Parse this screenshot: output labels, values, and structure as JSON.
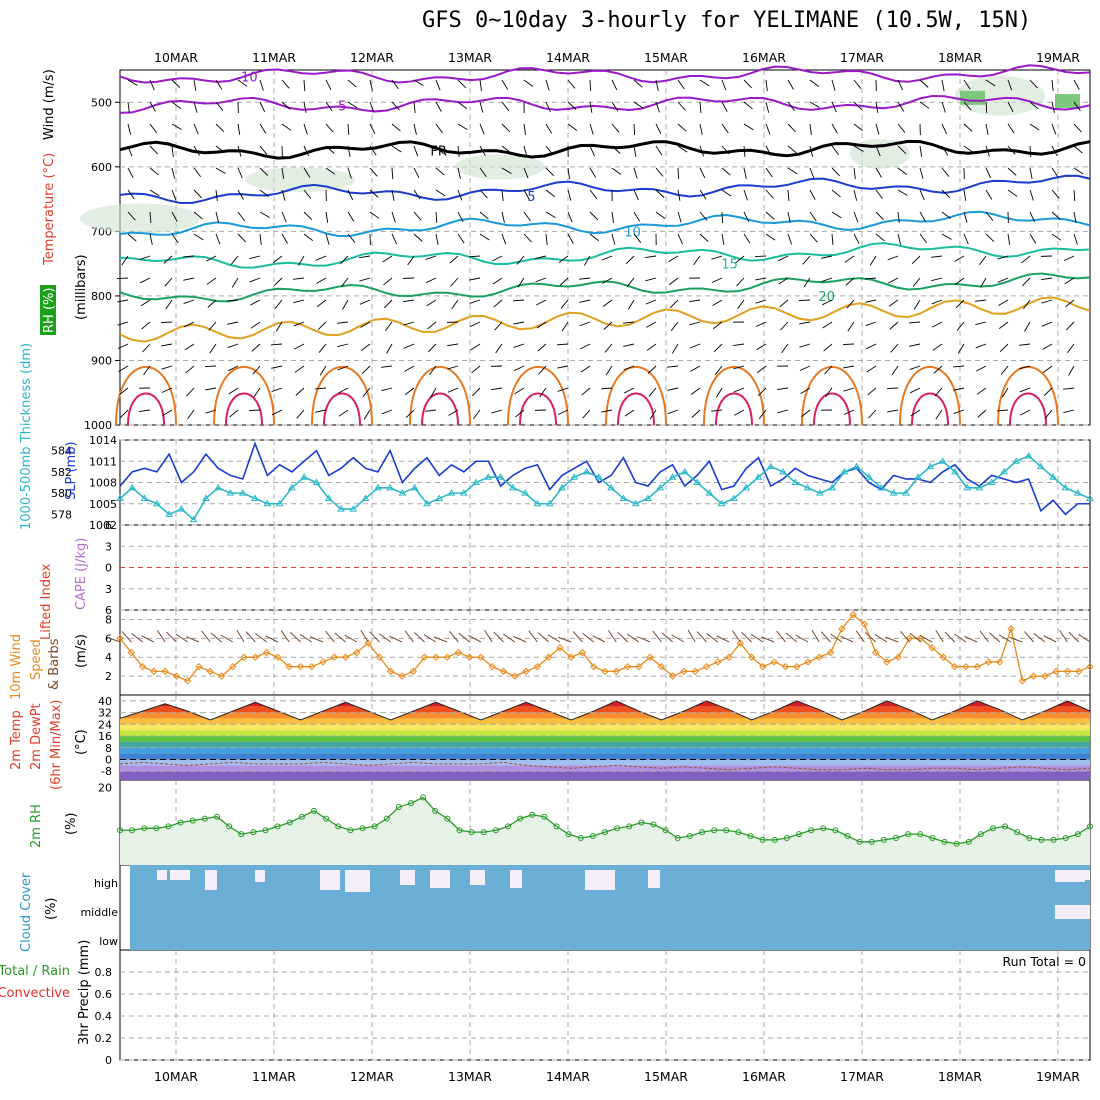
{
  "title": "GFS 0~10day 3-hourly for YELIMANE (10.5W, 15N)",
  "dates": [
    "10MAR",
    "11MAR",
    "12MAR",
    "13MAR",
    "14MAR",
    "15MAR",
    "16MAR",
    "17MAR",
    "18MAR",
    "19MAR"
  ],
  "labels": {
    "wind": "Wind (m/s)",
    "temperature": "Temperature (°C)",
    "rh": "RH (%)",
    "millibars": "(millibars)",
    "thickness": "1000-500mb Thickness (dm)",
    "slp": "SLP (mb)",
    "lifted": "Lifted Index",
    "cape": "CAPE (J/kg)",
    "wind10a": "10m Wind",
    "wind10b": "Speed",
    "wind10c": "& Barbs",
    "wind10unit": "(m/s)",
    "t2a": "2m Temp",
    "t2b": "2m DewPt",
    "t2c": "(6hr Min/Max)",
    "t2unit": "(°C)",
    "rh2": "2m RH",
    "rh2unit": "(%)",
    "cloud": "Cloud Cover",
    "cloudunit": "(%)",
    "cloud_high": "high",
    "cloud_middle": "middle",
    "cloud_low": "low",
    "precip_total": "Total / Rain",
    "precip_conv": "Convective",
    "precip": "3hr Precip (mm)",
    "run_total": "Run Total = 0"
  },
  "colors": {
    "slp_line": "#1a3ccf",
    "thickness_line": "#2ab8c8",
    "wind10_line": "#e88a1a",
    "rh2_line": "#2a9a2a",
    "cloud_fill": "#6baed6",
    "temp_label": "#e0402a",
    "wind_label": "#000000",
    "rh_label": "#2a9a2a",
    "cape_label": "#b070d0",
    "lifted_label": "#e0402a"
  },
  "chart_data": [
    {
      "type": "line",
      "panel": "upper-air",
      "title": "Temperature isotherms (°C)",
      "yaxis": "pressure (mb)",
      "yticks": [
        500,
        600,
        700,
        800,
        900,
        1000
      ],
      "ylim": [
        450,
        1000
      ],
      "isotherm_labels": [
        "-10",
        "-5",
        "FR",
        "5",
        "10",
        "15",
        "20"
      ],
      "series": [
        {
          "name": "-10",
          "x": [
            0,
            80
          ],
          "y": [
            460,
            455
          ]
        },
        {
          "name": "-5",
          "x": [
            0,
            80
          ],
          "y": [
            505,
            500
          ]
        },
        {
          "name": "FR",
          "x": [
            0,
            80
          ],
          "y": [
            575,
            570
          ]
        },
        {
          "name": "5",
          "x": [
            0,
            80
          ],
          "y": [
            645,
            625
          ]
        },
        {
          "name": "10",
          "x": [
            0,
            80
          ],
          "y": [
            700,
            680
          ]
        },
        {
          "name": "15",
          "x": [
            0,
            80
          ],
          "y": [
            750,
            725
          ]
        },
        {
          "name": "20",
          "x": [
            0,
            80
          ],
          "y": [
            800,
            775
          ]
        }
      ]
    },
    {
      "type": "line",
      "panel": "slp-thickness",
      "yticks_left": [
        578,
        580,
        582,
        584
      ],
      "yticks_right": [
        1002,
        1005,
        1008,
        1011,
        1014
      ],
      "series": [
        {
          "name": "SLP (mb)",
          "values": [
            1007.5,
            1009.5,
            1010,
            1009.5,
            1012,
            1008,
            1009.5,
            1012,
            1010,
            1009,
            1008.5,
            1013.5,
            1009,
            1010.5,
            1009.5,
            1011,
            1012.5,
            1009,
            1010,
            1011.5,
            1010,
            1009.5,
            1012.5,
            1008,
            1010,
            1011.5,
            1009,
            1010.5,
            1009.5,
            1011,
            1011,
            1007.5,
            1009,
            1010,
            1010.5,
            1007,
            1009,
            1010,
            1011,
            1008,
            1009,
            1011.5,
            1008,
            1007.5,
            1009.5,
            1010.5,
            1007.5,
            1009,
            1011,
            1007,
            1007.5,
            1010,
            1011.5,
            1007.5,
            1008.5,
            1010,
            1009,
            1008.5,
            1008,
            1009.5,
            1010,
            1008,
            1007,
            1009,
            1008.5,
            1008.5,
            1008,
            1009.5,
            1010.5,
            1008.5,
            1007.5,
            1009,
            1008.5,
            1008,
            1008.5,
            1004,
            1005.5,
            1003.5,
            1005,
            1005
          ]
        },
        {
          "name": "1000-500mb Thickness (dm)",
          "values": [
            579.5,
            580.5,
            579.5,
            579,
            578,
            578.5,
            577.5,
            579.5,
            580.5,
            580,
            580,
            579.5,
            579,
            579,
            580.5,
            581.5,
            581,
            579.5,
            578.5,
            578.5,
            579.5,
            580.5,
            580.5,
            580,
            580.5,
            579,
            579.5,
            580,
            580,
            581,
            581.5,
            581.5,
            580.5,
            580,
            579,
            579,
            580.5,
            581.5,
            582,
            581.5,
            580.5,
            579.5,
            579,
            579.5,
            580.5,
            581.5,
            582,
            581,
            580,
            579,
            579.5,
            580.5,
            581.5,
            582.5,
            582,
            581,
            580.5,
            580,
            580.5,
            582,
            582.5,
            581.5,
            580.5,
            580,
            580,
            581.5,
            582.5,
            583,
            582,
            580.5,
            580.5,
            581,
            582,
            583,
            583.5,
            582.5,
            581.5,
            580.5,
            580,
            579.5
          ]
        }
      ]
    },
    {
      "type": "line",
      "panel": "lifted-cape",
      "yticks": [
        6,
        3,
        0,
        -3,
        -6
      ],
      "ylim": [
        -6,
        6
      ],
      "series": [
        {
          "name": "Lifted Index",
          "values": []
        }
      ]
    },
    {
      "type": "line",
      "panel": "wind10",
      "yticks": [
        2,
        4,
        6,
        8
      ],
      "ylim": [
        0,
        9
      ],
      "series": [
        {
          "name": "10m Wind Speed",
          "values": [
            6,
            4.5,
            3,
            2.5,
            2.5,
            2,
            1.5,
            3,
            2.5,
            2,
            3,
            4,
            4,
            4.5,
            4,
            3,
            3,
            3,
            3.5,
            4,
            4,
            4.5,
            5.5,
            4,
            2.5,
            2,
            2.5,
            4,
            4,
            4,
            4.5,
            4,
            4,
            3,
            2.5,
            2,
            2.5,
            3,
            4,
            5,
            4,
            4.5,
            3,
            2.5,
            2.5,
            3,
            3,
            4,
            3,
            2,
            2.5,
            2.5,
            3,
            3.5,
            4,
            5.5,
            4,
            3,
            3.5,
            3,
            3,
            3.5,
            4,
            4.5,
            7,
            8.5,
            7.5,
            4.5,
            3.5,
            4,
            6,
            6,
            5,
            4,
            3,
            3,
            3,
            3.5,
            3.5,
            7,
            1.5,
            2,
            2,
            2.5,
            2.5,
            2.5,
            3
          ]
        }
      ]
    },
    {
      "type": "area",
      "panel": "temp2m",
      "yticks": [
        -8,
        0,
        8,
        16,
        24,
        32,
        40
      ],
      "ylim": [
        -14,
        44
      ],
      "series": [
        {
          "name": "2m Temp",
          "values": [
            28,
            33,
            38,
            33,
            27,
            33,
            39,
            33,
            27,
            33,
            39,
            33,
            27,
            33,
            39,
            33,
            27,
            33,
            39,
            33,
            27,
            33,
            40,
            33,
            27,
            33,
            40,
            34,
            27,
            33,
            40,
            34,
            27,
            33,
            40,
            34,
            27,
            33,
            40,
            34,
            27,
            33,
            40,
            33
          ]
        },
        {
          "name": "2m DewPt",
          "values": [
            -3,
            -2,
            -3,
            -4,
            -3,
            -2,
            -3,
            -3,
            -3,
            -2,
            -3,
            -4,
            -3,
            -2,
            -3,
            -3,
            -3,
            -2,
            -4,
            -5,
            -6,
            -5,
            -4,
            -5,
            -6,
            -5,
            -6,
            -7,
            -6,
            -5,
            -6,
            -7,
            -7,
            -6,
            -7,
            -7,
            -6,
            -6,
            -7,
            -6,
            -5,
            -6,
            -7,
            -6
          ]
        }
      ]
    },
    {
      "type": "line",
      "panel": "rh2m",
      "yticks": [
        20
      ],
      "ylim": [
        0,
        22
      ],
      "series": [
        {
          "name": "2m RH",
          "values": [
            9,
            9,
            9.5,
            9.5,
            10,
            11,
            11.5,
            12,
            12.5,
            10,
            8,
            8.5,
            9,
            10,
            11,
            12.5,
            14,
            12,
            10,
            9,
            9.5,
            10,
            12,
            15,
            16,
            17.5,
            14,
            12,
            9,
            8.5,
            8.5,
            9,
            10,
            12,
            13,
            12.5,
            10,
            8,
            7,
            7.5,
            8.5,
            9.5,
            10,
            11,
            10.5,
            9,
            7,
            7.5,
            8.5,
            9,
            9,
            8.5,
            7.5,
            6.5,
            6.5,
            7,
            8,
            9,
            9.5,
            9,
            7.5,
            6,
            6,
            6.5,
            7,
            8,
            8,
            7,
            6,
            5.5,
            6,
            8,
            9.5,
            10,
            8.5,
            7,
            6.5,
            6.5,
            7,
            8,
            10
          ]
        }
      ]
    },
    {
      "type": "heatmap",
      "panel": "cloud",
      "levels": [
        "high",
        "middle",
        "low"
      ]
    },
    {
      "type": "bar",
      "panel": "precip",
      "yticks": [
        0,
        0.2,
        0.4,
        0.6,
        0.8
      ],
      "ylim": [
        0,
        1
      ],
      "values": [],
      "annotation": "Run Total = 0"
    }
  ]
}
